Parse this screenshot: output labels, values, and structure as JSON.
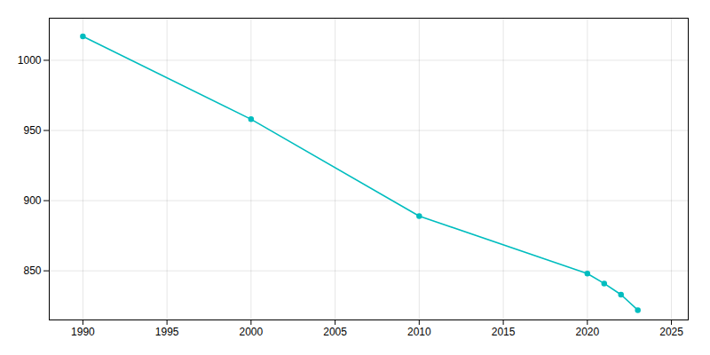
{
  "chart_data": {
    "type": "line",
    "x": [
      1990,
      2000,
      2010,
      2020,
      2021,
      2022,
      2023
    ],
    "values": [
      1017,
      958,
      889,
      848,
      841,
      833,
      822
    ],
    "color": "#00BDBF",
    "marker": "circle",
    "xlim": [
      1988,
      2026
    ],
    "ylim": [
      815,
      1030
    ],
    "xticks": [
      1990,
      1995,
      2000,
      2005,
      2010,
      2015,
      2020,
      2025
    ],
    "yticks": [
      850,
      900,
      950,
      1000
    ],
    "grid": true
  }
}
